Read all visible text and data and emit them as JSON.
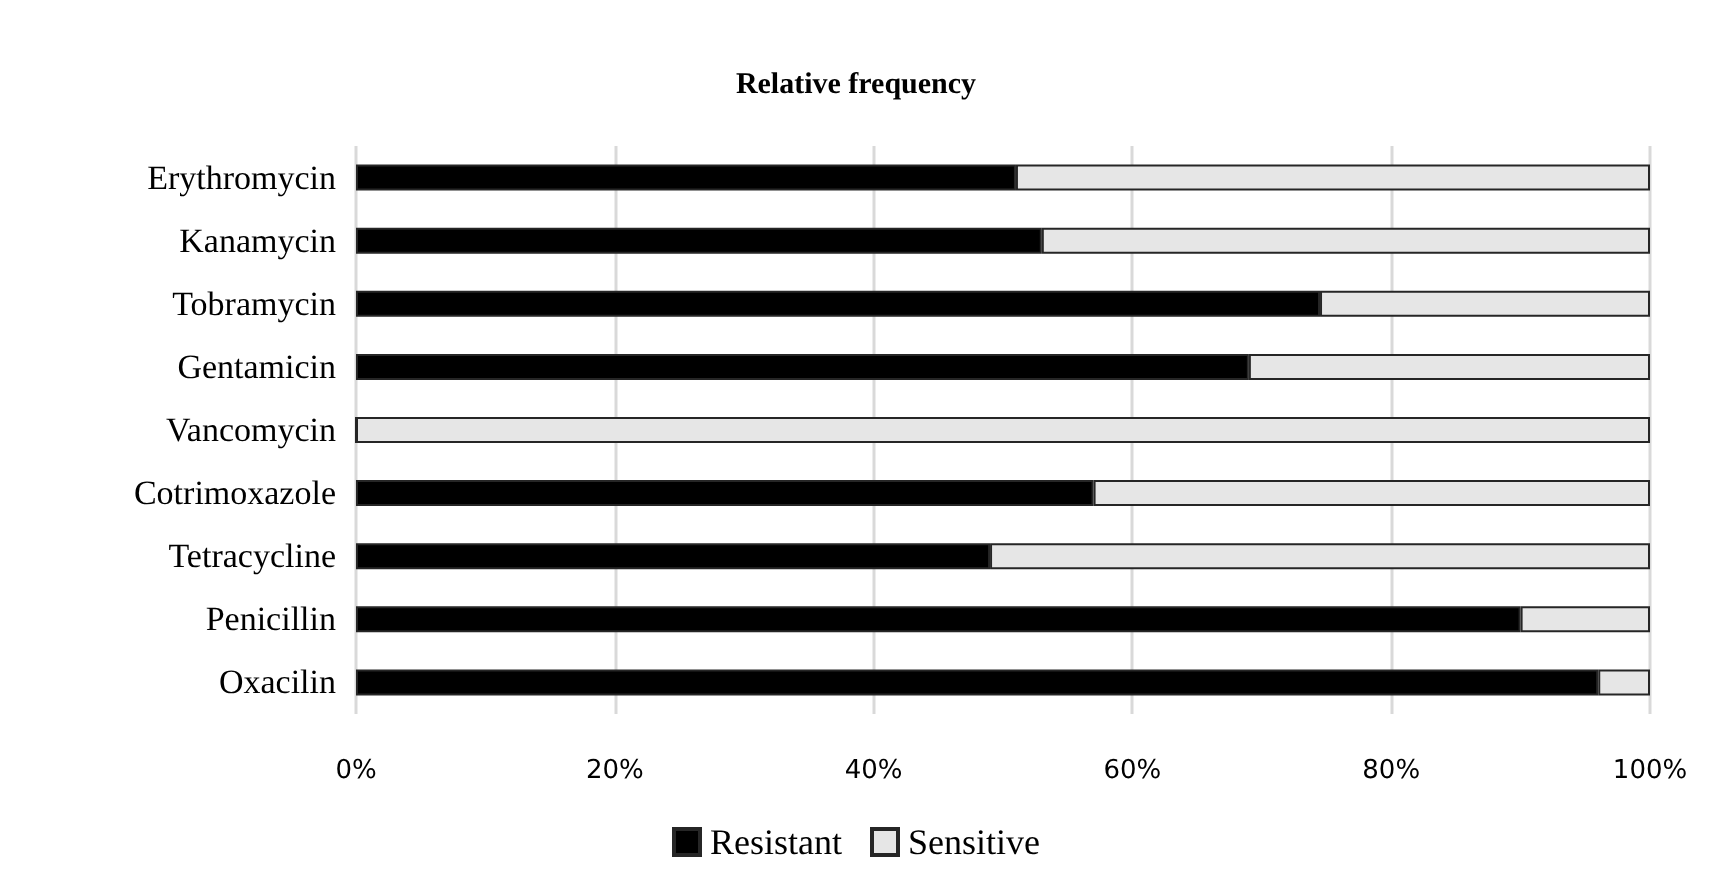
{
  "chart_data": {
    "type": "bar",
    "orientation": "horizontal",
    "stacked": true,
    "title": "Relative frequency",
    "categories": [
      "Erythromycin",
      "Kanamycin",
      "Tobramycin",
      "Gentamicin",
      "Vancomycin",
      "Cotrimoxazole",
      "Tetracycline",
      "Penicillin",
      "Oxacilin"
    ],
    "series": [
      {
        "name": "Resistant",
        "color": "#000000",
        "values": [
          51,
          53,
          74.5,
          69,
          0,
          57,
          49,
          90,
          96
        ]
      },
      {
        "name": "Sensitive",
        "color": "#e6e6e6",
        "values": [
          49,
          47,
          25.5,
          31,
          100,
          43,
          51,
          10,
          4
        ]
      }
    ],
    "xlim": [
      0,
      100
    ],
    "xticks": [
      {
        "value": 0,
        "label": "0%"
      },
      {
        "value": 20,
        "label": "20%"
      },
      {
        "value": 40,
        "label": "40%"
      },
      {
        "value": 60,
        "label": "60%"
      },
      {
        "value": 80,
        "label": "80%"
      },
      {
        "value": 100,
        "label": "100%"
      }
    ],
    "grid": "x",
    "legend": "bottom"
  }
}
